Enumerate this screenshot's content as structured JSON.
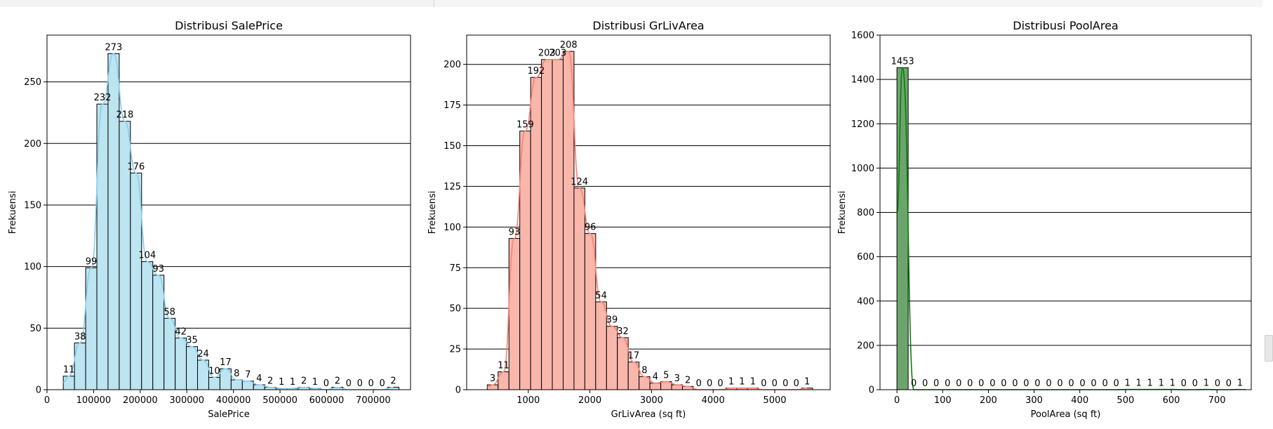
{
  "colors": {
    "saleprice_fill": "#bce4f1",
    "saleprice_line": "#87ceeb",
    "grliv_fill": "#f9b6ab",
    "grliv_line": "#fa8072",
    "pool_fill": "#6ca56c",
    "pool_line": "#0a7d0a",
    "grid": "#000000",
    "bar_edge": "#000000"
  },
  "chart_data": [
    {
      "type": "histogram",
      "title": "Distribusi SalePrice",
      "xlabel": "SalePrice",
      "ylabel": "Frekuensi",
      "xlim": [
        0,
        780000
      ],
      "ylim": [
        0,
        288
      ],
      "xticks": [
        0,
        100000,
        200000,
        300000,
        400000,
        500000,
        600000,
        700000
      ],
      "xtick_labels": [
        "0",
        "100000",
        "200000",
        "300000",
        "400000",
        "500000",
        "600000",
        "700000"
      ],
      "yticks": [
        0,
        50,
        100,
        150,
        200,
        250
      ],
      "ytick_labels": [
        "0",
        "50",
        "100",
        "150",
        "200",
        "250"
      ],
      "grid": "horizontal",
      "bin_start": 34900,
      "bin_width": 24010,
      "values": [
        11,
        38,
        99,
        232,
        273,
        218,
        176,
        104,
        93,
        58,
        42,
        35,
        24,
        10,
        17,
        8,
        7,
        4,
        2,
        1,
        1,
        2,
        1,
        0,
        2,
        0,
        0,
        0,
        0,
        2
      ],
      "data_labels": [
        "11",
        "38",
        "99",
        "232",
        "273",
        "218",
        "176",
        "104",
        "93",
        "58",
        "42",
        "35",
        "24",
        "10",
        "17",
        "8",
        "7",
        "4",
        "2",
        "1",
        "1",
        "2",
        "1",
        "0",
        "2",
        "0",
        "0",
        "0",
        "0",
        "2"
      ],
      "kde": true
    },
    {
      "type": "histogram",
      "title": "Distribusi GrLivArea",
      "xlabel": "GrLivArea (sq ft)",
      "ylabel": "Frekuensi",
      "xlim": [
        0,
        5900
      ],
      "ylim": [
        0,
        218
      ],
      "xticks": [
        1000,
        2000,
        3000,
        4000,
        5000
      ],
      "xtick_labels": [
        "1000",
        "2000",
        "3000",
        "4000",
        "5000"
      ],
      "yticks": [
        0,
        25,
        50,
        75,
        100,
        125,
        150,
        175,
        200
      ],
      "ytick_labels": [
        "0",
        "25",
        "50",
        "75",
        "100",
        "125",
        "150",
        "175",
        "200"
      ],
      "grid": "horizontal",
      "bin_start": 334,
      "bin_width": 176,
      "values": [
        3,
        11,
        93,
        159,
        192,
        203,
        203,
        208,
        124,
        96,
        54,
        39,
        32,
        17,
        8,
        4,
        5,
        3,
        2,
        0,
        0,
        0,
        1,
        1,
        1,
        0,
        0,
        0,
        0,
        1
      ],
      "data_labels": [
        "3",
        "11",
        "93",
        "159",
        "192",
        "203",
        "203",
        "208",
        "124",
        "96",
        "54",
        "39",
        "32",
        "17",
        "8",
        "4",
        "5",
        "3",
        "2",
        "0",
        "0",
        "0",
        "1",
        "1",
        "1",
        "0",
        "0",
        "0",
        "0",
        "1"
      ],
      "kde": true
    },
    {
      "type": "histogram",
      "title": "Distribusi PoolArea",
      "xlabel": "PoolArea (sq ft)",
      "ylabel": "Frekuensi",
      "xlim": [
        -37,
        775
      ],
      "ylim": [
        0,
        1600
      ],
      "xticks": [
        0,
        100,
        200,
        300,
        400,
        500,
        600,
        700
      ],
      "xtick_labels": [
        "0",
        "100",
        "200",
        "300",
        "400",
        "500",
        "600",
        "700"
      ],
      "yticks": [
        0,
        200,
        400,
        600,
        800,
        1000,
        1200,
        1400,
        1600
      ],
      "ytick_labels": [
        "0",
        "200",
        "400",
        "600",
        "800",
        "1000",
        "1200",
        "1400",
        "1600"
      ],
      "grid": "horizontal",
      "bin_start": 0,
      "bin_width": 24.6,
      "values": [
        1453,
        0,
        0,
        0,
        0,
        0,
        0,
        0,
        0,
        0,
        0,
        0,
        0,
        0,
        0,
        0,
        0,
        0,
        0,
        0,
        1,
        1,
        1,
        1,
        1,
        0,
        0,
        1,
        0,
        0,
        1
      ],
      "data_labels": [
        "1453",
        "0",
        "0",
        "0",
        "0",
        "0",
        "0",
        "0",
        "0",
        "0",
        "0",
        "0",
        "0",
        "0",
        "0",
        "0",
        "0",
        "0",
        "0",
        "0",
        "1",
        "1",
        "1",
        "1",
        "1",
        "0",
        "0",
        "1",
        "0",
        "0",
        "1"
      ],
      "kde": true
    }
  ]
}
